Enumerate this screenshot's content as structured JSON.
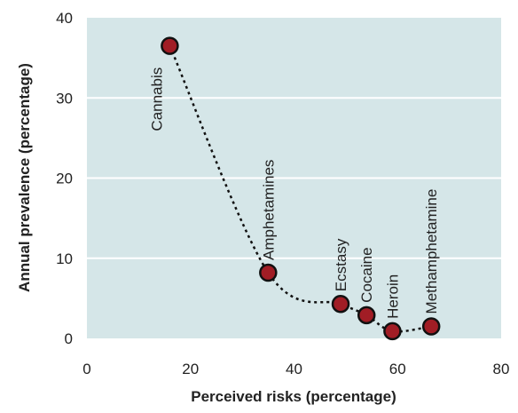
{
  "chart_data": {
    "type": "scatter",
    "xlabel": "Perceived risks (percentage)",
    "ylabel": "Annual prevalence (percentage)",
    "xlim": [
      0,
      80
    ],
    "ylim": [
      0,
      40
    ],
    "xticks": [
      "0",
      "20",
      "40",
      "60",
      "80"
    ],
    "yticks": [
      "0",
      "10",
      "20",
      "30",
      "40"
    ],
    "grid": "horizontal",
    "points": [
      {
        "label": "Cannabis",
        "x": 16,
        "y": 36.5
      },
      {
        "label": "Amphetamines",
        "x": 35,
        "y": 8.2
      },
      {
        "label": "Ecstasy",
        "x": 49,
        "y": 4.3
      },
      {
        "label": "Cocaine",
        "x": 54,
        "y": 2.9
      },
      {
        "label": "Heroin",
        "x": 59,
        "y": 0.9
      },
      {
        "label": "Methamphetamine",
        "x": 66.5,
        "y": 1.5
      }
    ],
    "trendline": {
      "style": "dotted",
      "shape": "curved"
    },
    "colors": {
      "plot_background": "#d5e6e8",
      "marker_fill": "#a11d25",
      "marker_edge": "#111111",
      "gridline": "#ffffff",
      "trendline": "#111111"
    }
  }
}
